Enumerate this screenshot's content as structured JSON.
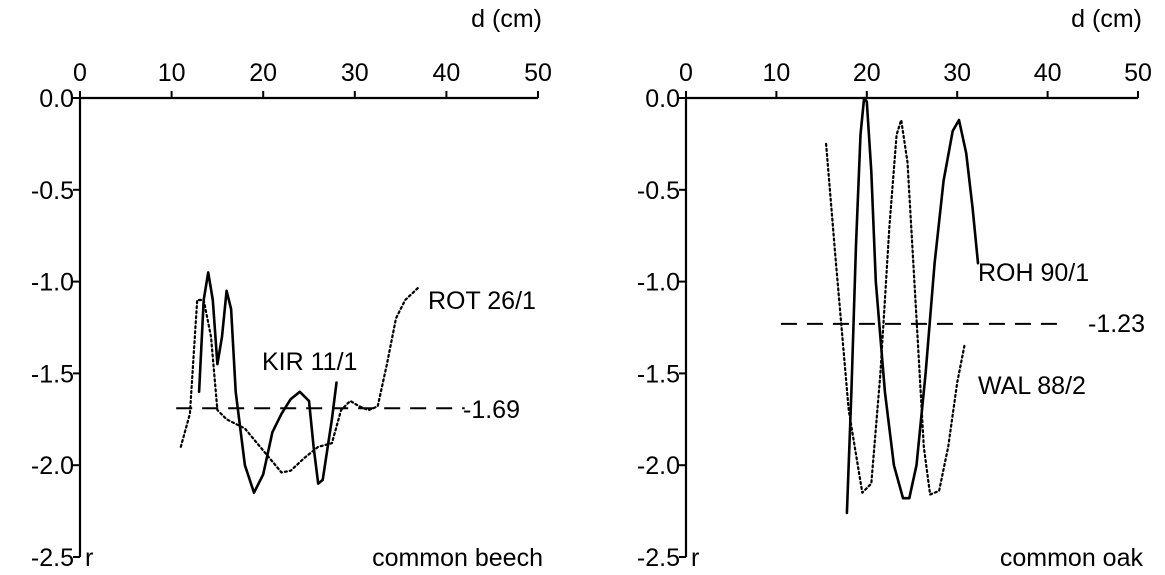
{
  "chart_data": [
    {
      "type": "line",
      "x_axis": {
        "title": "d (cm)",
        "range": [
          0,
          50
        ],
        "ticks": [
          0,
          10,
          20,
          30,
          40,
          50
        ],
        "tick_labels": [
          "0",
          "10",
          "20",
          "30",
          "40",
          "50"
        ],
        "position": "top"
      },
      "y_axis": {
        "title": "r",
        "range": [
          -2.5,
          0.0
        ],
        "ticks": [
          0.0,
          -0.5,
          -1.0,
          -1.5,
          -2.0,
          -2.5
        ],
        "tick_labels": [
          "0.0",
          "-0.5",
          "-1.0",
          "-1.5",
          "-2.0",
          "-2.5"
        ]
      },
      "panel_label": "common beech",
      "grid": false,
      "series": [
        {
          "name": "KIR 11/1",
          "style": "solid",
          "points": [
            [
              13.0,
              -1.6
            ],
            [
              13.5,
              -1.1
            ],
            [
              14.0,
              -0.95
            ],
            [
              14.5,
              -1.1
            ],
            [
              15.0,
              -1.45
            ],
            [
              15.5,
              -1.3
            ],
            [
              16.0,
              -1.05
            ],
            [
              16.5,
              -1.15
            ],
            [
              17.0,
              -1.6
            ],
            [
              18.0,
              -2.0
            ],
            [
              19.0,
              -2.15
            ],
            [
              20.0,
              -2.05
            ],
            [
              21.0,
              -1.82
            ],
            [
              22.0,
              -1.72
            ],
            [
              23.0,
              -1.64
            ],
            [
              24.0,
              -1.6
            ],
            [
              25.0,
              -1.65
            ],
            [
              25.5,
              -1.9
            ],
            [
              26.0,
              -2.1
            ],
            [
              26.5,
              -2.08
            ],
            [
              27.5,
              -1.75
            ],
            [
              28.0,
              -1.55
            ]
          ]
        },
        {
          "name": "ROT 26/1",
          "style": "dotted",
          "points": [
            [
              11.0,
              -1.9
            ],
            [
              12.0,
              -1.72
            ],
            [
              12.8,
              -1.1
            ],
            [
              13.5,
              -1.1
            ],
            [
              14.3,
              -1.3
            ],
            [
              15.0,
              -1.7
            ],
            [
              16.0,
              -1.75
            ],
            [
              18.0,
              -1.8
            ],
            [
              20.0,
              -1.92
            ],
            [
              22.0,
              -2.04
            ],
            [
              23.0,
              -2.03
            ],
            [
              24.5,
              -1.96
            ],
            [
              26.0,
              -1.9
            ],
            [
              27.5,
              -1.88
            ],
            [
              28.5,
              -1.7
            ],
            [
              29.5,
              -1.65
            ],
            [
              30.5,
              -1.68
            ],
            [
              31.5,
              -1.7
            ],
            [
              32.5,
              -1.68
            ],
            [
              33.5,
              -1.45
            ],
            [
              34.5,
              -1.2
            ],
            [
              35.5,
              -1.1
            ],
            [
              37.0,
              -1.03
            ]
          ]
        }
      ],
      "reference_line": {
        "y": -1.69,
        "label": "-1.69",
        "style": "dashed",
        "x_range": [
          10.5,
          42.0
        ]
      }
    },
    {
      "type": "line",
      "x_axis": {
        "title": "d (cm)",
        "range": [
          0,
          50
        ],
        "ticks": [
          0,
          10,
          20,
          30,
          40,
          50
        ],
        "tick_labels": [
          "0",
          "10",
          "20",
          "30",
          "40",
          "50"
        ],
        "position": "top"
      },
      "y_axis": {
        "title": "r",
        "range": [
          -2.5,
          0.0
        ],
        "ticks": [
          0.0,
          -0.5,
          -1.0,
          -1.5,
          -2.0,
          -2.5
        ],
        "tick_labels": [
          "0.0",
          "-0.5",
          "-1.0",
          "-1.5",
          "-2.0",
          "-2.5"
        ]
      },
      "panel_label": "common oak",
      "grid": false,
      "series": [
        {
          "name": "ROH 90/1",
          "style": "solid",
          "points": [
            [
              17.8,
              -2.26
            ],
            [
              18.3,
              -1.6
            ],
            [
              18.8,
              -0.8
            ],
            [
              19.3,
              -0.2
            ],
            [
              19.7,
              0.0
            ],
            [
              20.0,
              -0.02
            ],
            [
              20.5,
              -0.4
            ],
            [
              21.0,
              -1.0
            ],
            [
              22.0,
              -1.6
            ],
            [
              23.0,
              -2.0
            ],
            [
              24.0,
              -2.18
            ],
            [
              24.7,
              -2.18
            ],
            [
              25.5,
              -2.0
            ],
            [
              26.5,
              -1.5
            ],
            [
              27.5,
              -0.9
            ],
            [
              28.5,
              -0.45
            ],
            [
              29.5,
              -0.18
            ],
            [
              30.2,
              -0.12
            ],
            [
              31.0,
              -0.3
            ],
            [
              31.7,
              -0.6
            ],
            [
              32.3,
              -0.9
            ]
          ]
        },
        {
          "name": "WAL 88/2",
          "style": "dotted",
          "points": [
            [
              15.5,
              -0.25
            ],
            [
              16.5,
              -0.85
            ],
            [
              18.0,
              -1.7
            ],
            [
              19.5,
              -2.15
            ],
            [
              20.5,
              -2.1
            ],
            [
              21.5,
              -1.5
            ],
            [
              22.5,
              -0.7
            ],
            [
              23.3,
              -0.2
            ],
            [
              23.8,
              -0.12
            ],
            [
              24.5,
              -0.35
            ],
            [
              25.5,
              -1.2
            ],
            [
              26.3,
              -1.9
            ],
            [
              27.0,
              -2.16
            ],
            [
              28.0,
              -2.14
            ],
            [
              29.0,
              -1.9
            ],
            [
              30.0,
              -1.55
            ],
            [
              30.8,
              -1.35
            ]
          ]
        }
      ],
      "reference_line": {
        "y": -1.23,
        "label": "-1.23",
        "style": "dashed",
        "x_range": [
          10.5,
          42.0
        ]
      }
    }
  ]
}
